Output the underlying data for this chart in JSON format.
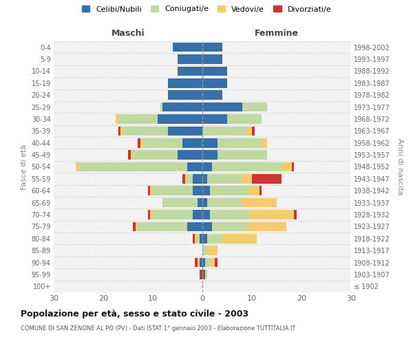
{
  "age_groups": [
    "100+",
    "95-99",
    "90-94",
    "85-89",
    "80-84",
    "75-79",
    "70-74",
    "65-69",
    "60-64",
    "55-59",
    "50-54",
    "45-49",
    "40-44",
    "35-39",
    "30-34",
    "25-29",
    "20-24",
    "15-19",
    "10-14",
    "5-9",
    "0-4"
  ],
  "birth_years": [
    "≤ 1902",
    "1903-1907",
    "1908-1912",
    "1913-1917",
    "1918-1922",
    "1923-1927",
    "1928-1932",
    "1933-1937",
    "1938-1942",
    "1943-1947",
    "1948-1952",
    "1953-1957",
    "1958-1962",
    "1963-1967",
    "1968-1972",
    "1973-1977",
    "1978-1982",
    "1983-1987",
    "1988-1992",
    "1993-1997",
    "1998-2002"
  ],
  "colors": {
    "celibe": "#3570A8",
    "coniugato": "#C0D9A0",
    "vedovo": "#F5CB6E",
    "divorziato": "#CC3333"
  },
  "maschi_celibe": [
    0,
    0,
    0.5,
    0,
    0.5,
    3,
    2,
    1,
    2,
    2,
    3,
    5,
    4,
    7,
    9,
    8,
    7,
    7,
    5,
    5,
    6
  ],
  "maschi_coniugato": [
    0,
    0,
    0,
    0,
    0.5,
    10,
    8,
    7,
    8,
    1,
    22,
    9,
    8,
    9,
    8,
    0.5,
    0,
    0,
    0,
    0,
    0
  ],
  "maschi_vedovo": [
    0,
    0,
    0.5,
    0,
    0.5,
    0.5,
    0.5,
    0,
    0.5,
    0.5,
    0.5,
    0.5,
    0.5,
    0.5,
    0.5,
    0,
    0,
    0,
    0,
    0,
    0
  ],
  "maschi_divorziato": [
    0,
    0.5,
    0.5,
    0,
    0.5,
    0.5,
    0.5,
    0,
    0.5,
    0.5,
    0,
    0.5,
    0.5,
    0.5,
    0,
    0,
    0,
    0,
    0,
    0,
    0
  ],
  "femmine_celibe": [
    0,
    0.5,
    0.5,
    0,
    1,
    2,
    1.5,
    1,
    1.5,
    1,
    2,
    3,
    3,
    0,
    5,
    8,
    4,
    5,
    5,
    4,
    4
  ],
  "femmine_coniugato": [
    0,
    0,
    1,
    1,
    3,
    7,
    8,
    7,
    8,
    7,
    14,
    10,
    9,
    9,
    7,
    5,
    0,
    0,
    0,
    0,
    0
  ],
  "femmine_vedovo": [
    0,
    0.5,
    1,
    2,
    7,
    8,
    9,
    7,
    2,
    2,
    2,
    0,
    1,
    1,
    0,
    0,
    0,
    0,
    0,
    0,
    0
  ],
  "femmine_divorziato": [
    0,
    0,
    0.5,
    0,
    0,
    0,
    0.5,
    0,
    0.5,
    6,
    0.5,
    0,
    0,
    0.5,
    0,
    0,
    0,
    0,
    0,
    0,
    0
  ],
  "xlim": [
    -30,
    30
  ],
  "xticks": [
    -30,
    -20,
    -10,
    0,
    10,
    20,
    30
  ],
  "xticklabels": [
    "30",
    "20",
    "10",
    "0",
    "10",
    "20",
    "30"
  ],
  "title_main": "Popolazione per età, sesso e stato civile - 2003",
  "title_sub": "COMUNE DI SAN ZENONE AL PO (PV) - Dati ISTAT 1° gennaio 2003 - Elaborazione TUTTITALIA.IT",
  "ylabel_left": "Fasce di età",
  "ylabel_right": "Anni di nascita",
  "label_maschi": "Maschi",
  "label_femmine": "Femmine",
  "legend_labels": [
    "Celibi/Nubili",
    "Coniugati/e",
    "Vedovi/e",
    "Divorziati/e"
  ],
  "bg_color": "#F2F2F2",
  "bar_height": 0.78
}
